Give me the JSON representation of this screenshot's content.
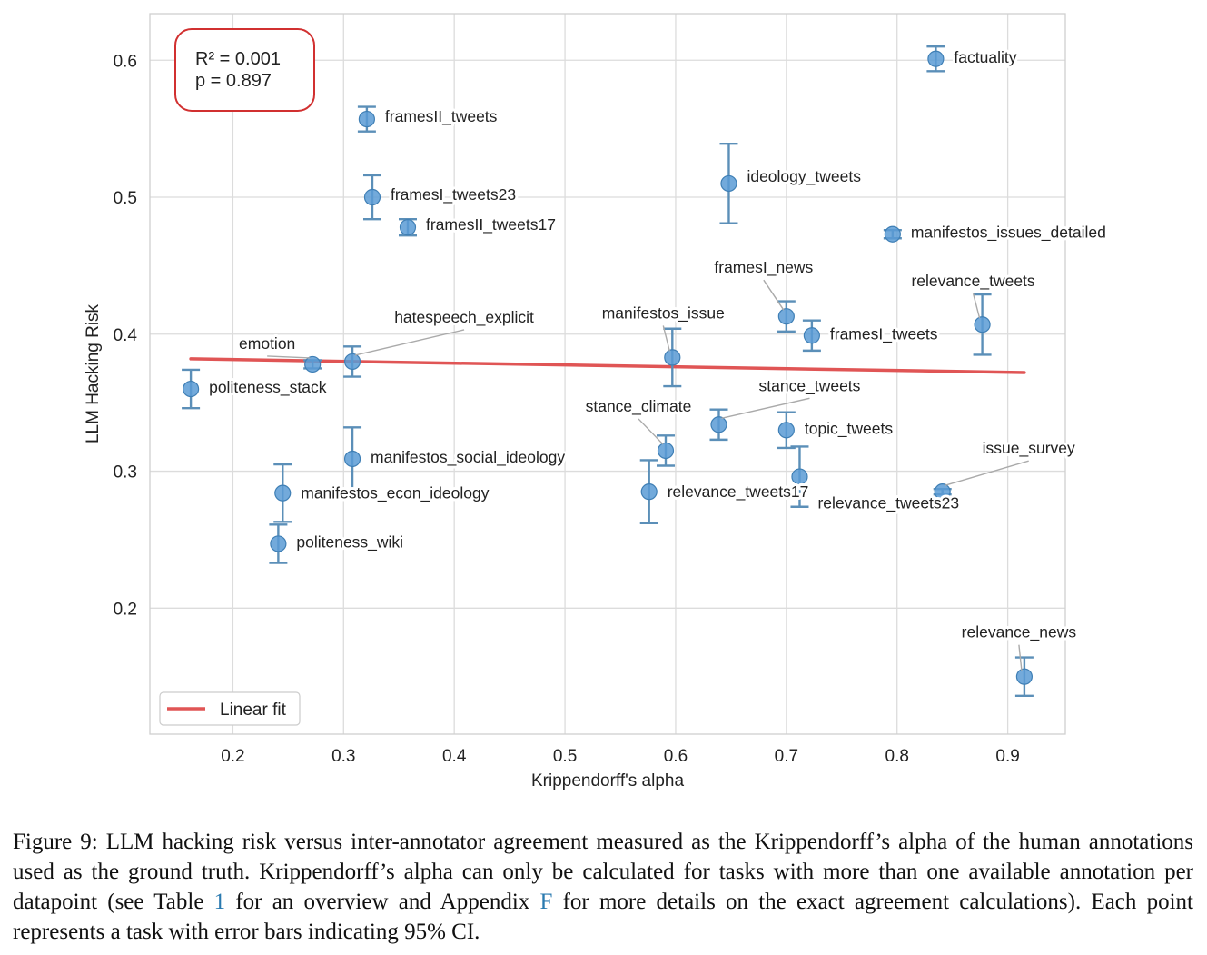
{
  "chart_data": {
    "type": "scatter",
    "xlabel": "Krippendorff's alpha",
    "ylabel": "LLM Hacking Risk",
    "xlim": [
      0.125,
      0.952
    ],
    "ylim": [
      0.108,
      0.634
    ],
    "x_ticks": [
      "0.2",
      "0.3",
      "0.4",
      "0.5",
      "0.6",
      "0.7",
      "0.8",
      "0.9"
    ],
    "y_ticks": [
      "0.2",
      "0.3",
      "0.4",
      "0.5",
      "0.6"
    ],
    "grid": true,
    "legend": {
      "position": "lower-left",
      "entries": [
        "Linear fit"
      ]
    },
    "fit_line": {
      "x": [
        0.162,
        0.915
      ],
      "y": [
        0.382,
        0.372
      ]
    },
    "annotation": {
      "lines": [
        "R² = 0.001",
        "p = 0.897"
      ],
      "position": "top-left"
    },
    "colors": {
      "points": "#5b9bd5",
      "error_bars": "#5b8fb8",
      "fit": "#e05555",
      "annotation_border": "#d13030"
    },
    "points": [
      {
        "label": "factuality",
        "x": 0.835,
        "y": 0.601,
        "err": 0.009
      },
      {
        "label": "framesII_tweets",
        "x": 0.321,
        "y": 0.557,
        "err": 0.009
      },
      {
        "label": "framesI_tweets23",
        "x": 0.326,
        "y": 0.5,
        "err": 0.016
      },
      {
        "label": "framesII_tweets17",
        "x": 0.358,
        "y": 0.478,
        "err": 0.006
      },
      {
        "label": "ideology_tweets",
        "x": 0.648,
        "y": 0.51,
        "err": 0.029
      },
      {
        "label": "manifestos_issues_detailed",
        "x": 0.796,
        "y": 0.473,
        "err": 0.003
      },
      {
        "label": "framesI_news",
        "x": 0.7,
        "y": 0.413,
        "err": 0.011
      },
      {
        "label": "relevance_tweets",
        "x": 0.877,
        "y": 0.407,
        "err": 0.022
      },
      {
        "label": "framesI_tweets",
        "x": 0.723,
        "y": 0.399,
        "err": 0.011
      },
      {
        "label": "emotion",
        "x": 0.272,
        "y": 0.378,
        "err": 0.003
      },
      {
        "label": "hatespeech_explicit",
        "x": 0.308,
        "y": 0.38,
        "err": 0.011
      },
      {
        "label": "manifestos_issue",
        "x": 0.597,
        "y": 0.383,
        "err": 0.021
      },
      {
        "label": "politeness_stack",
        "x": 0.162,
        "y": 0.36,
        "err": 0.014
      },
      {
        "label": "stance_tweets",
        "x": 0.639,
        "y": 0.334,
        "err": 0.011
      },
      {
        "label": "stance_climate",
        "x": 0.591,
        "y": 0.315,
        "err": 0.011
      },
      {
        "label": "topic_tweets",
        "x": 0.7,
        "y": 0.33,
        "err": 0.013
      },
      {
        "label": "manifestos_social_ideology",
        "x": 0.308,
        "y": 0.309,
        "err": 0.023
      },
      {
        "label": "relevance_tweets23",
        "x": 0.712,
        "y": 0.296,
        "err": 0.022
      },
      {
        "label": "issue_survey",
        "x": 0.841,
        "y": 0.285,
        "err": 0.002
      },
      {
        "label": "manifestos_econ_ideology",
        "x": 0.245,
        "y": 0.284,
        "err": 0.021
      },
      {
        "label": "relevance_tweets17",
        "x": 0.576,
        "y": 0.285,
        "err": 0.023
      },
      {
        "label": "politeness_wiki",
        "x": 0.241,
        "y": 0.247,
        "err": 0.014
      },
      {
        "label": "relevance_news",
        "x": 0.915,
        "y": 0.15,
        "err": 0.014
      }
    ]
  },
  "caption": {
    "before_ref1": "Figure 9: LLM hacking risk versus inter-annotator agreement measured as the Krippendorff’s alpha of the human annotations used as the ground truth. Krippendorff’s alpha can only be calculated for tasks with more than one available annotation per datapoint (see Table ",
    "ref1": "1",
    "between_refs": " for an overview and Appendix ",
    "ref2": "F",
    "after_ref2": " for more details on the exact agreement calculations). Each point represents a task with error bars indicating 95% CI."
  }
}
